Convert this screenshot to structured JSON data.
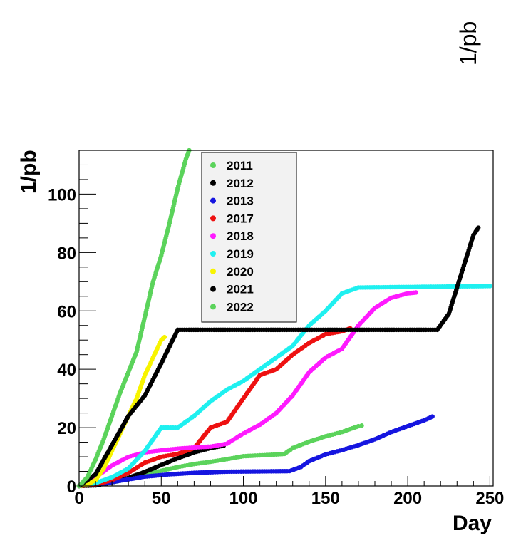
{
  "chart_data": {
    "type": "scatter",
    "xlabel": "Day",
    "ylabel": "1/pb",
    "corner_label": "1/pb",
    "xlim": [
      0,
      252
    ],
    "ylim": [
      0,
      115
    ],
    "xticks": [
      0,
      50,
      100,
      150,
      200,
      250
    ],
    "yticks": [
      0,
      20,
      40,
      60,
      80,
      100
    ],
    "legend_position": "top-center",
    "series": [
      {
        "name": "2011",
        "color": "#5bd35b",
        "points": [
          [
            0,
            0
          ],
          [
            10,
            0.3
          ],
          [
            20,
            1.2
          ],
          [
            30,
            2.5
          ],
          [
            40,
            3.8
          ],
          [
            50,
            5.2
          ],
          [
            60,
            6.5
          ],
          [
            70,
            7.5
          ],
          [
            80,
            8.3
          ],
          [
            90,
            9.2
          ],
          [
            100,
            10.2
          ],
          [
            110,
            10.5
          ],
          [
            120,
            10.8
          ],
          [
            125,
            11
          ],
          [
            130,
            13
          ],
          [
            140,
            15.2
          ],
          [
            150,
            17
          ],
          [
            160,
            18.5
          ],
          [
            170,
            20.5
          ],
          [
            172,
            20.7
          ]
        ]
      },
      {
        "name": "2012",
        "color": "#000000",
        "points": [
          [
            0,
            0
          ],
          [
            10,
            0.2
          ],
          [
            20,
            1.2
          ],
          [
            30,
            2.8
          ],
          [
            40,
            4.8
          ],
          [
            50,
            7.2
          ],
          [
            60,
            9.5
          ],
          [
            70,
            11.5
          ],
          [
            80,
            13
          ],
          [
            88,
            13.8
          ]
        ]
      },
      {
        "name": "2013",
        "color": "#1515e0",
        "points": [
          [
            0,
            0
          ],
          [
            15,
            0.8
          ],
          [
            25,
            1.8
          ],
          [
            40,
            3.2
          ],
          [
            55,
            4
          ],
          [
            70,
            4.5
          ],
          [
            90,
            4.9
          ],
          [
            110,
            5
          ],
          [
            128,
            5.1
          ],
          [
            135,
            6.5
          ],
          [
            140,
            8.5
          ],
          [
            150,
            10.8
          ],
          [
            160,
            12.3
          ],
          [
            170,
            14
          ],
          [
            180,
            16
          ],
          [
            190,
            18.5
          ],
          [
            200,
            20.5
          ],
          [
            210,
            22.5
          ],
          [
            215,
            23.8
          ]
        ]
      },
      {
        "name": "2017",
        "color": "#ee1111",
        "points": [
          [
            0,
            0
          ],
          [
            10,
            0.5
          ],
          [
            20,
            2
          ],
          [
            30,
            4.5
          ],
          [
            40,
            8
          ],
          [
            50,
            10
          ],
          [
            60,
            11
          ],
          [
            70,
            13
          ],
          [
            80,
            20
          ],
          [
            90,
            22
          ],
          [
            100,
            30
          ],
          [
            110,
            38
          ],
          [
            120,
            40
          ],
          [
            130,
            45
          ],
          [
            140,
            49
          ],
          [
            150,
            52
          ],
          [
            160,
            53
          ],
          [
            165,
            54
          ]
        ]
      },
      {
        "name": "2018",
        "color": "#ff1aff",
        "points": [
          [
            0,
            0
          ],
          [
            10,
            3
          ],
          [
            20,
            7
          ],
          [
            30,
            10
          ],
          [
            40,
            11.5
          ],
          [
            50,
            12.2
          ],
          [
            60,
            12.8
          ],
          [
            70,
            13.2
          ],
          [
            80,
            13.5
          ],
          [
            90,
            14.5
          ],
          [
            100,
            18
          ],
          [
            110,
            21
          ],
          [
            120,
            25
          ],
          [
            130,
            31
          ],
          [
            140,
            39
          ],
          [
            150,
            44
          ],
          [
            160,
            47
          ],
          [
            170,
            55
          ],
          [
            180,
            61
          ],
          [
            190,
            64.5
          ],
          [
            200,
            66
          ],
          [
            205,
            66.3
          ]
        ]
      },
      {
        "name": "2019",
        "color": "#1ff0f0",
        "points": [
          [
            0,
            0
          ],
          [
            10,
            1
          ],
          [
            20,
            3
          ],
          [
            30,
            6
          ],
          [
            40,
            12
          ],
          [
            50,
            20
          ],
          [
            60,
            20
          ],
          [
            70,
            24
          ],
          [
            80,
            29
          ],
          [
            90,
            33
          ],
          [
            100,
            36
          ],
          [
            110,
            40
          ],
          [
            120,
            44
          ],
          [
            130,
            48
          ],
          [
            140,
            55
          ],
          [
            150,
            60
          ],
          [
            160,
            66
          ],
          [
            170,
            68
          ],
          [
            250,
            68.5
          ]
        ]
      },
      {
        "name": "2020",
        "color": "#f8f400",
        "points": [
          [
            0,
            0
          ],
          [
            5,
            0.5
          ],
          [
            10,
            2
          ],
          [
            15,
            6
          ],
          [
            20,
            12
          ],
          [
            25,
            18
          ],
          [
            30,
            24
          ],
          [
            35,
            30
          ],
          [
            40,
            38
          ],
          [
            45,
            44
          ],
          [
            50,
            50
          ],
          [
            52,
            51
          ]
        ]
      },
      {
        "name": "2021",
        "color": "#000000",
        "points": [
          [
            0,
            0
          ],
          [
            10,
            4
          ],
          [
            20,
            14
          ],
          [
            30,
            24
          ],
          [
            40,
            31
          ],
          [
            50,
            42
          ],
          [
            60,
            53.5
          ],
          [
            100,
            53.5
          ],
          [
            150,
            53.5
          ],
          [
            200,
            53.5
          ],
          [
            218,
            53.5
          ],
          [
            225,
            59
          ],
          [
            230,
            68
          ],
          [
            235,
            77
          ],
          [
            240,
            86
          ],
          [
            243,
            88.5
          ]
        ]
      },
      {
        "name": "2022",
        "color": "#5bd35b",
        "points": [
          [
            0,
            0
          ],
          [
            5,
            3
          ],
          [
            10,
            9
          ],
          [
            15,
            16
          ],
          [
            20,
            24
          ],
          [
            25,
            32
          ],
          [
            30,
            39
          ],
          [
            35,
            46
          ],
          [
            40,
            58
          ],
          [
            45,
            70
          ],
          [
            50,
            79
          ],
          [
            55,
            90
          ],
          [
            60,
            102
          ],
          [
            65,
            112
          ],
          [
            67,
            115
          ]
        ]
      }
    ]
  }
}
